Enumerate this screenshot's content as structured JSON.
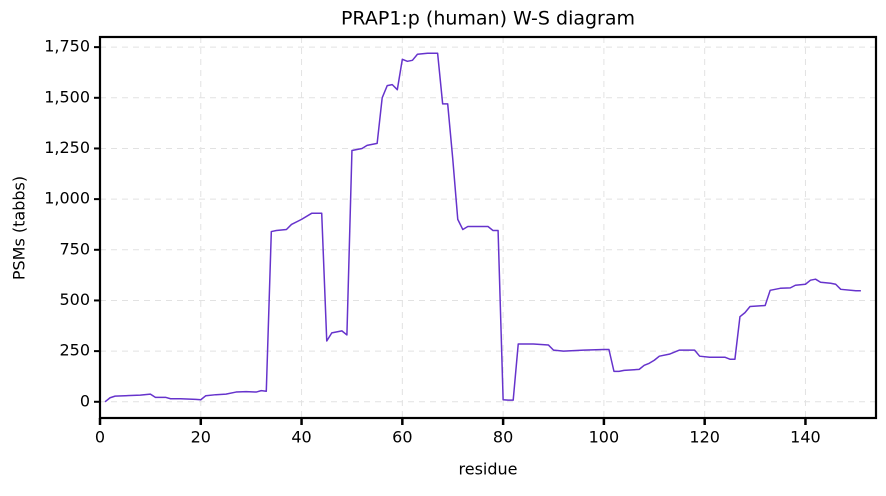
{
  "chart_data": {
    "type": "line",
    "title": "PRAP1:p (human) W-S diagram",
    "xlabel": "residue",
    "ylabel": "PSMs (tabbs)",
    "x": [
      1,
      2,
      3,
      5,
      8,
      10,
      11,
      13,
      14,
      16,
      19,
      20,
      21,
      23,
      25,
      27,
      29,
      31,
      32,
      33,
      34,
      35,
      37,
      38,
      40,
      42,
      44,
      45,
      46,
      48,
      49,
      50,
      52,
      53,
      55,
      56,
      57,
      58,
      59,
      60,
      61,
      62,
      63,
      65,
      67,
      68,
      69,
      70,
      71,
      72,
      73,
      76,
      77,
      78,
      79,
      80,
      81,
      82,
      83,
      86,
      89,
      90,
      92,
      96,
      100,
      101,
      102,
      103,
      104,
      107,
      108,
      109,
      110,
      111,
      113,
      115,
      118,
      119,
      121,
      124,
      125,
      126,
      127,
      128,
      129,
      132,
      133,
      135,
      137,
      138,
      140,
      141,
      142,
      143,
      145,
      146,
      147,
      150,
      151
    ],
    "series": [
      {
        "name": "PSMs",
        "color": "#6633cc",
        "values": [
          0,
          20,
          28,
          30,
          33,
          38,
          22,
          22,
          15,
          15,
          12,
          10,
          30,
          35,
          38,
          48,
          50,
          48,
          55,
          52,
          840,
          845,
          850,
          875,
          900,
          930,
          930,
          300,
          340,
          350,
          330,
          1240,
          1250,
          1265,
          1275,
          1500,
          1560,
          1565,
          1540,
          1690,
          1680,
          1685,
          1715,
          1720,
          1720,
          1470,
          1470,
          1200,
          900,
          850,
          865,
          865,
          865,
          845,
          845,
          10,
          8,
          8,
          285,
          285,
          280,
          255,
          250,
          255,
          258,
          258,
          150,
          150,
          155,
          160,
          180,
          190,
          205,
          225,
          235,
          255,
          255,
          225,
          220,
          220,
          210,
          210,
          420,
          440,
          470,
          475,
          550,
          560,
          562,
          575,
          580,
          600,
          605,
          590,
          585,
          580,
          555,
          548,
          548
        ]
      }
    ],
    "xlim": [
      0,
      154
    ],
    "xticks": [
      0,
      20,
      40,
      60,
      80,
      100,
      120,
      140
    ],
    "ylim": [
      -80,
      1800
    ],
    "yticks": [
      0,
      250,
      500,
      750,
      {
        "value": 1000,
        "label": "1,000"
      },
      {
        "value": 1250,
        "label": "1,250"
      },
      {
        "value": 1500,
        "label": "1,500"
      },
      {
        "value": 1750,
        "label": "1,750"
      }
    ],
    "grid": true
  }
}
